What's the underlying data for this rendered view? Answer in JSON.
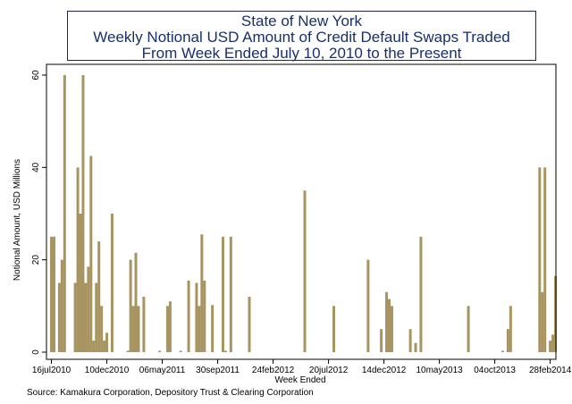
{
  "chart_data": {
    "type": "bar",
    "title_lines": [
      "State of New York",
      "Weekly Notional USD Amount of Credit Default Swaps Traded",
      "From Week Ended July 10, 2010 to the Present"
    ],
    "ylabel": "Notional Amount, USD Millions",
    "xlabel": "Week Ended",
    "ylim": [
      0,
      62
    ],
    "y_ticks": [
      0,
      20,
      40,
      60
    ],
    "x_start": "2010-07-10",
    "x_end": "2014-03-08",
    "x_tick_labels": [
      {
        "label": "16jul2010",
        "date": "2010-07-16"
      },
      {
        "label": "10dec2010",
        "date": "2010-12-10"
      },
      {
        "label": "06may2011",
        "date": "2011-05-06"
      },
      {
        "label": "30sep2011",
        "date": "2011-09-30"
      },
      {
        "label": "24feb2012",
        "date": "2012-02-24"
      },
      {
        "label": "20jul2012",
        "date": "2012-07-20"
      },
      {
        "label": "14dec2012",
        "date": "2012-12-14"
      },
      {
        "label": "10may2013",
        "date": "2013-05-10"
      },
      {
        "label": "04oct2013",
        "date": "2013-10-04"
      },
      {
        "label": "28feb2014",
        "date": "2014-02-28"
      }
    ],
    "bars": [
      {
        "date": "2010-07-16",
        "value": 25
      },
      {
        "date": "2010-07-23",
        "value": 25
      },
      {
        "date": "2010-08-06",
        "value": 15
      },
      {
        "date": "2010-08-13",
        "value": 20
      },
      {
        "date": "2010-08-20",
        "value": 60
      },
      {
        "date": "2010-09-17",
        "value": 15
      },
      {
        "date": "2010-09-24",
        "value": 40
      },
      {
        "date": "2010-10-01",
        "value": 30
      },
      {
        "date": "2010-10-08",
        "value": 60
      },
      {
        "date": "2010-10-15",
        "value": 15
      },
      {
        "date": "2010-10-22",
        "value": 18.5
      },
      {
        "date": "2010-10-29",
        "value": 42.5
      },
      {
        "date": "2010-11-05",
        "value": 2.5
      },
      {
        "date": "2010-11-12",
        "value": 15
      },
      {
        "date": "2010-11-19",
        "value": 24
      },
      {
        "date": "2010-11-26",
        "value": 10
      },
      {
        "date": "2010-12-03",
        "value": 2.5
      },
      {
        "date": "2010-12-10",
        "value": 4.2
      },
      {
        "date": "2010-12-24",
        "value": 30
      },
      {
        "date": "2011-02-04",
        "value": 0.3
      },
      {
        "date": "2011-02-11",
        "value": 20
      },
      {
        "date": "2011-02-18",
        "value": 10
      },
      {
        "date": "2011-02-25",
        "value": 21.5
      },
      {
        "date": "2011-03-04",
        "value": 10
      },
      {
        "date": "2011-03-18",
        "value": 12
      },
      {
        "date": "2011-04-29",
        "value": 0.3
      },
      {
        "date": "2011-05-20",
        "value": 10
      },
      {
        "date": "2011-05-27",
        "value": 11
      },
      {
        "date": "2011-06-24",
        "value": 0.3
      },
      {
        "date": "2011-07-15",
        "value": 15.5
      },
      {
        "date": "2011-08-05",
        "value": 15
      },
      {
        "date": "2011-08-12",
        "value": 10
      },
      {
        "date": "2011-08-19",
        "value": 25.5
      },
      {
        "date": "2011-08-26",
        "value": 15.5
      },
      {
        "date": "2011-09-16",
        "value": 10.2
      },
      {
        "date": "2011-10-14",
        "value": 25
      },
      {
        "date": "2011-10-21",
        "value": 0.3
      },
      {
        "date": "2011-11-04",
        "value": 25
      },
      {
        "date": "2011-12-23",
        "value": 12
      },
      {
        "date": "2012-05-18",
        "value": 35
      },
      {
        "date": "2012-08-03",
        "value": 10
      },
      {
        "date": "2012-11-02",
        "value": 20
      },
      {
        "date": "2012-12-07",
        "value": 5
      },
      {
        "date": "2012-12-21",
        "value": 13
      },
      {
        "date": "2012-12-28",
        "value": 11.5
      },
      {
        "date": "2013-01-04",
        "value": 10
      },
      {
        "date": "2013-02-22",
        "value": 5
      },
      {
        "date": "2013-03-08",
        "value": 2
      },
      {
        "date": "2013-03-22",
        "value": 25
      },
      {
        "date": "2013-07-26",
        "value": 10
      },
      {
        "date": "2013-10-25",
        "value": 0.3
      },
      {
        "date": "2013-11-08",
        "value": 5
      },
      {
        "date": "2013-11-15",
        "value": 10
      },
      {
        "date": "2014-01-31",
        "value": 40
      },
      {
        "date": "2014-02-07",
        "value": 13
      },
      {
        "date": "2014-02-14",
        "value": 40
      },
      {
        "date": "2014-02-28",
        "value": 2.5
      },
      {
        "date": "2014-03-07",
        "value": 3.8
      },
      {
        "date": "2014-03-14",
        "value": 16.5
      }
    ],
    "bar_color": "#a89460",
    "grid": "off",
    "legend": "none"
  },
  "source_note": "Source: Kamakura Corporation, Depository Trust & Clearing Corporation"
}
